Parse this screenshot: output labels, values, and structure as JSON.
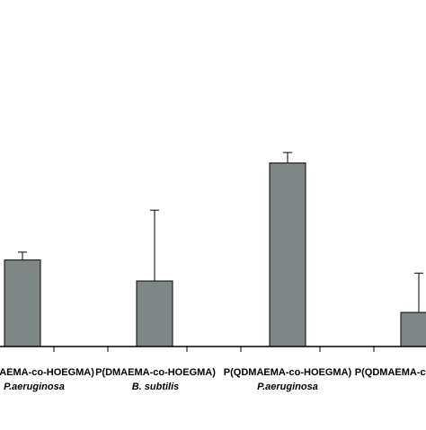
{
  "chart_data": {
    "type": "bar",
    "title": "",
    "xlabel": "",
    "ylabel": "",
    "ylim": [
      0,
      100
    ],
    "categories": [
      {
        "polymer": "P(DMAEMA-co-HOEGMA)",
        "organism": "P.aeruginosa"
      },
      {
        "polymer": "P(DMAEMA-co-HOEGMA)",
        "organism": "B. subtilis"
      },
      {
        "polymer": "P(QDMAEMA-co-HOEGMA)",
        "organism": "P.aeruginosa"
      },
      {
        "polymer": "P(QDMAEMA-co-HOEGMA)",
        "organism": ""
      }
    ],
    "values": [
      33,
      25,
      70,
      13
    ],
    "errors": [
      3,
      27,
      4,
      15
    ],
    "colors": {
      "bar": "#7f8786",
      "axis": "#000000",
      "error": "#000000"
    }
  }
}
